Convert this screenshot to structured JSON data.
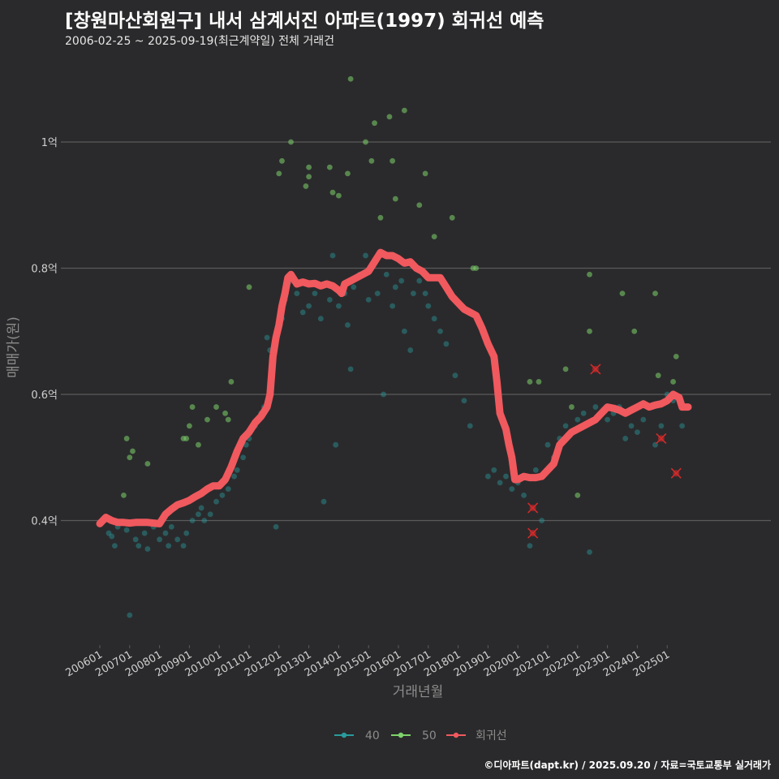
{
  "header": {
    "title": "[창원마산회원구] 내서 삼계서진 아파트(1997) 회귀선 예측",
    "subtitle": "2006-02-25 ~ 2025-09-19(최근계약일) 전체 거래건"
  },
  "footer": {
    "credit": "©디아파트(dapt.kr) / 2025.09.20 / 자료=국토교통부 실거래가"
  },
  "colors": {
    "background": "#2a2a2c",
    "grid": "#5a5a5a",
    "s40": "#2a9a9c",
    "s50": "#7ed36b",
    "regression": "#f0595e",
    "cancelled": "#d42a2a"
  },
  "chart_data": {
    "type": "scatter",
    "title": "[창원마산회원구] 내서 삼계서진 아파트(1997) 회귀선 예측",
    "xlabel": "거래년월",
    "ylabel": "매매가(원)",
    "x_ticks": [
      "200601",
      "200701",
      "200801",
      "200901",
      "201001",
      "201101",
      "201201",
      "201301",
      "201401",
      "201501",
      "201601",
      "201701",
      "201801",
      "201901",
      "202001",
      "202101",
      "202201",
      "202301",
      "202401",
      "202501"
    ],
    "y_ticks": [
      {
        "value": 0.4,
        "label": "0.4억"
      },
      {
        "value": 0.6,
        "label": "0.6억"
      },
      {
        "value": 0.8,
        "label": "0.8억"
      },
      {
        "value": 1.0,
        "label": "1억"
      }
    ],
    "ylim": [
      0.2,
      1.15
    ],
    "xlim": [
      2005.6,
      2026.2
    ],
    "grid": true,
    "legend_position": "bottom",
    "legend": [
      {
        "key": "s40",
        "label": "40"
      },
      {
        "key": "s50",
        "label": "50"
      },
      {
        "key": "regression",
        "label": "회귀선"
      }
    ],
    "series": [
      {
        "name": "40",
        "color_key": "s40",
        "points": [
          [
            2006.3,
            0.38
          ],
          [
            2006.4,
            0.375
          ],
          [
            2006.5,
            0.36
          ],
          [
            2006.6,
            0.39
          ],
          [
            2006.9,
            0.385
          ],
          [
            2007.0,
            0.25
          ],
          [
            2007.2,
            0.37
          ],
          [
            2007.3,
            0.36
          ],
          [
            2007.5,
            0.38
          ],
          [
            2007.6,
            0.355
          ],
          [
            2007.8,
            0.39
          ],
          [
            2008.0,
            0.37
          ],
          [
            2008.2,
            0.38
          ],
          [
            2008.3,
            0.36
          ],
          [
            2008.4,
            0.39
          ],
          [
            2008.6,
            0.37
          ],
          [
            2008.8,
            0.36
          ],
          [
            2008.9,
            0.38
          ],
          [
            2009.1,
            0.4
          ],
          [
            2009.3,
            0.41
          ],
          [
            2009.4,
            0.42
          ],
          [
            2009.5,
            0.4
          ],
          [
            2009.7,
            0.41
          ],
          [
            2009.9,
            0.43
          ],
          [
            2010.1,
            0.44
          ],
          [
            2010.3,
            0.45
          ],
          [
            2010.5,
            0.47
          ],
          [
            2010.6,
            0.48
          ],
          [
            2010.8,
            0.5
          ],
          [
            2010.9,
            0.52
          ],
          [
            2011.0,
            0.53
          ],
          [
            2011.2,
            0.55
          ],
          [
            2011.4,
            0.57
          ],
          [
            2011.5,
            0.58
          ],
          [
            2011.6,
            0.69
          ],
          [
            2011.7,
            0.67
          ],
          [
            2011.8,
            0.66
          ],
          [
            2011.9,
            0.39
          ],
          [
            2012.1,
            0.72
          ],
          [
            2012.2,
            0.75
          ],
          [
            2012.4,
            0.78
          ],
          [
            2012.6,
            0.76
          ],
          [
            2012.8,
            0.73
          ],
          [
            2013.0,
            0.74
          ],
          [
            2013.2,
            0.76
          ],
          [
            2013.4,
            0.72
          ],
          [
            2013.5,
            0.43
          ],
          [
            2013.7,
            0.75
          ],
          [
            2013.8,
            0.82
          ],
          [
            2013.9,
            0.52
          ],
          [
            2014.0,
            0.74
          ],
          [
            2014.2,
            0.76
          ],
          [
            2014.3,
            0.71
          ],
          [
            2014.4,
            0.64
          ],
          [
            2014.5,
            0.77
          ],
          [
            2014.7,
            0.79
          ],
          [
            2014.9,
            0.82
          ],
          [
            2015.0,
            0.75
          ],
          [
            2015.2,
            0.81
          ],
          [
            2015.3,
            0.76
          ],
          [
            2015.5,
            0.6
          ],
          [
            2015.6,
            0.79
          ],
          [
            2015.8,
            0.74
          ],
          [
            2015.9,
            0.77
          ],
          [
            2016.1,
            0.78
          ],
          [
            2016.2,
            0.7
          ],
          [
            2016.4,
            0.67
          ],
          [
            2016.5,
            0.76
          ],
          [
            2016.7,
            0.78
          ],
          [
            2016.9,
            0.76
          ],
          [
            2017.0,
            0.74
          ],
          [
            2017.2,
            0.72
          ],
          [
            2017.4,
            0.7
          ],
          [
            2017.6,
            0.68
          ],
          [
            2017.9,
            0.63
          ],
          [
            2018.2,
            0.59
          ],
          [
            2018.4,
            0.55
          ],
          [
            2019.0,
            0.47
          ],
          [
            2019.2,
            0.48
          ],
          [
            2019.4,
            0.46
          ],
          [
            2019.6,
            0.47
          ],
          [
            2019.8,
            0.45
          ],
          [
            2020.0,
            0.46
          ],
          [
            2020.2,
            0.44
          ],
          [
            2020.4,
            0.36
          ],
          [
            2020.6,
            0.48
          ],
          [
            2020.8,
            0.4
          ],
          [
            2021.0,
            0.52
          ],
          [
            2021.2,
            0.5
          ],
          [
            2021.4,
            0.53
          ],
          [
            2021.6,
            0.55
          ],
          [
            2021.8,
            0.54
          ],
          [
            2022.0,
            0.56
          ],
          [
            2022.2,
            0.57
          ],
          [
            2022.4,
            0.35
          ],
          [
            2022.6,
            0.58
          ],
          [
            2022.8,
            0.57
          ],
          [
            2023.0,
            0.56
          ],
          [
            2023.2,
            0.57
          ],
          [
            2023.4,
            0.58
          ],
          [
            2023.6,
            0.53
          ],
          [
            2023.8,
            0.55
          ],
          [
            2024.0,
            0.54
          ],
          [
            2024.2,
            0.56
          ],
          [
            2024.4,
            0.58
          ],
          [
            2024.6,
            0.52
          ],
          [
            2024.8,
            0.55
          ],
          [
            2025.0,
            0.6
          ],
          [
            2025.2,
            0.59
          ],
          [
            2025.5,
            0.55
          ]
        ]
      },
      {
        "name": "50",
        "color_key": "s50",
        "points": [
          [
            2006.8,
            0.44
          ],
          [
            2006.9,
            0.53
          ],
          [
            2007.0,
            0.5
          ],
          [
            2007.1,
            0.51
          ],
          [
            2007.6,
            0.49
          ],
          [
            2008.8,
            0.53
          ],
          [
            2008.9,
            0.53
          ],
          [
            2009.0,
            0.55
          ],
          [
            2009.1,
            0.58
          ],
          [
            2009.3,
            0.52
          ],
          [
            2009.6,
            0.56
          ],
          [
            2009.9,
            0.58
          ],
          [
            2010.2,
            0.57
          ],
          [
            2010.3,
            0.56
          ],
          [
            2010.4,
            0.62
          ],
          [
            2011.0,
            0.77
          ],
          [
            2012.0,
            0.95
          ],
          [
            2012.1,
            0.97
          ],
          [
            2012.4,
            1.0
          ],
          [
            2012.9,
            0.93
          ],
          [
            2013.0,
            0.96
          ],
          [
            2013.0,
            0.945
          ],
          [
            2013.7,
            0.96
          ],
          [
            2013.8,
            0.92
          ],
          [
            2014.0,
            0.915
          ],
          [
            2014.3,
            0.95
          ],
          [
            2014.4,
            1.1
          ],
          [
            2014.9,
            1.0
          ],
          [
            2015.1,
            0.97
          ],
          [
            2015.2,
            1.03
          ],
          [
            2015.4,
            0.88
          ],
          [
            2015.7,
            1.04
          ],
          [
            2015.8,
            0.97
          ],
          [
            2015.9,
            0.91
          ],
          [
            2016.2,
            1.05
          ],
          [
            2016.7,
            0.9
          ],
          [
            2016.9,
            0.95
          ],
          [
            2017.2,
            0.85
          ],
          [
            2017.8,
            0.88
          ],
          [
            2018.5,
            0.8
          ],
          [
            2018.6,
            0.8
          ],
          [
            2020.4,
            0.62
          ],
          [
            2020.7,
            0.62
          ],
          [
            2021.6,
            0.64
          ],
          [
            2021.8,
            0.58
          ],
          [
            2022.0,
            0.44
          ],
          [
            2022.4,
            0.79
          ],
          [
            2022.4,
            0.7
          ],
          [
            2023.5,
            0.76
          ],
          [
            2023.9,
            0.7
          ],
          [
            2024.6,
            0.76
          ],
          [
            2024.7,
            0.63
          ],
          [
            2025.3,
            0.66
          ],
          [
            2025.2,
            0.62
          ]
        ]
      },
      {
        "name": "회귀선",
        "color_key": "regression",
        "points": [
          [
            2006.0,
            0.395
          ],
          [
            2006.2,
            0.405
          ],
          [
            2006.4,
            0.4
          ],
          [
            2006.6,
            0.397
          ],
          [
            2006.8,
            0.397
          ],
          [
            2007.0,
            0.396
          ],
          [
            2007.2,
            0.397
          ],
          [
            2007.4,
            0.397
          ],
          [
            2007.6,
            0.397
          ],
          [
            2007.8,
            0.396
          ],
          [
            2008.0,
            0.395
          ],
          [
            2008.2,
            0.41
          ],
          [
            2008.4,
            0.418
          ],
          [
            2008.6,
            0.425
          ],
          [
            2008.8,
            0.428
          ],
          [
            2009.0,
            0.432
          ],
          [
            2009.2,
            0.438
          ],
          [
            2009.4,
            0.443
          ],
          [
            2009.6,
            0.45
          ],
          [
            2009.8,
            0.455
          ],
          [
            2010.0,
            0.455
          ],
          [
            2010.2,
            0.465
          ],
          [
            2010.4,
            0.485
          ],
          [
            2010.6,
            0.51
          ],
          [
            2010.8,
            0.53
          ],
          [
            2011.0,
            0.54
          ],
          [
            2011.2,
            0.555
          ],
          [
            2011.4,
            0.565
          ],
          [
            2011.6,
            0.58
          ],
          [
            2011.7,
            0.6
          ],
          [
            2011.8,
            0.66
          ],
          [
            2011.9,
            0.69
          ],
          [
            2012.0,
            0.71
          ],
          [
            2012.1,
            0.74
          ],
          [
            2012.2,
            0.76
          ],
          [
            2012.3,
            0.785
          ],
          [
            2012.4,
            0.79
          ],
          [
            2012.6,
            0.775
          ],
          [
            2012.8,
            0.778
          ],
          [
            2013.0,
            0.775
          ],
          [
            2013.2,
            0.776
          ],
          [
            2013.4,
            0.772
          ],
          [
            2013.6,
            0.775
          ],
          [
            2013.8,
            0.772
          ],
          [
            2014.0,
            0.765
          ],
          [
            2014.1,
            0.76
          ],
          [
            2014.2,
            0.775
          ],
          [
            2014.4,
            0.78
          ],
          [
            2014.6,
            0.785
          ],
          [
            2014.8,
            0.79
          ],
          [
            2015.0,
            0.795
          ],
          [
            2015.2,
            0.81
          ],
          [
            2015.4,
            0.825
          ],
          [
            2015.6,
            0.82
          ],
          [
            2015.8,
            0.82
          ],
          [
            2016.0,
            0.815
          ],
          [
            2016.2,
            0.808
          ],
          [
            2016.4,
            0.81
          ],
          [
            2016.6,
            0.8
          ],
          [
            2016.8,
            0.795
          ],
          [
            2017.0,
            0.785
          ],
          [
            2017.2,
            0.785
          ],
          [
            2017.4,
            0.785
          ],
          [
            2017.6,
            0.77
          ],
          [
            2017.8,
            0.755
          ],
          [
            2018.0,
            0.745
          ],
          [
            2018.2,
            0.735
          ],
          [
            2018.4,
            0.73
          ],
          [
            2018.6,
            0.725
          ],
          [
            2018.8,
            0.705
          ],
          [
            2019.0,
            0.68
          ],
          [
            2019.2,
            0.66
          ],
          [
            2019.3,
            0.62
          ],
          [
            2019.4,
            0.57
          ],
          [
            2019.6,
            0.545
          ],
          [
            2019.7,
            0.52
          ],
          [
            2019.8,
            0.5
          ],
          [
            2019.9,
            0.465
          ],
          [
            2020.0,
            0.465
          ],
          [
            2020.2,
            0.47
          ],
          [
            2020.4,
            0.468
          ],
          [
            2020.6,
            0.468
          ],
          [
            2020.8,
            0.47
          ],
          [
            2021.0,
            0.48
          ],
          [
            2021.2,
            0.49
          ],
          [
            2021.4,
            0.52
          ],
          [
            2021.6,
            0.53
          ],
          [
            2021.8,
            0.54
          ],
          [
            2022.0,
            0.545
          ],
          [
            2022.2,
            0.55
          ],
          [
            2022.4,
            0.555
          ],
          [
            2022.6,
            0.56
          ],
          [
            2022.8,
            0.57
          ],
          [
            2023.0,
            0.58
          ],
          [
            2023.2,
            0.578
          ],
          [
            2023.4,
            0.575
          ],
          [
            2023.6,
            0.57
          ],
          [
            2023.8,
            0.575
          ],
          [
            2024.0,
            0.58
          ],
          [
            2024.2,
            0.585
          ],
          [
            2024.4,
            0.58
          ],
          [
            2024.6,
            0.583
          ],
          [
            2024.8,
            0.585
          ],
          [
            2025.0,
            0.59
          ],
          [
            2025.2,
            0.6
          ],
          [
            2025.4,
            0.595
          ],
          [
            2025.5,
            0.58
          ],
          [
            2025.7,
            0.58
          ]
        ]
      },
      {
        "name": "cancelled",
        "color_key": "cancelled",
        "points": [
          [
            2020.5,
            0.42
          ],
          [
            2020.5,
            0.38
          ],
          [
            2022.6,
            0.64
          ],
          [
            2024.8,
            0.53
          ],
          [
            2025.3,
            0.475
          ]
        ]
      }
    ]
  }
}
